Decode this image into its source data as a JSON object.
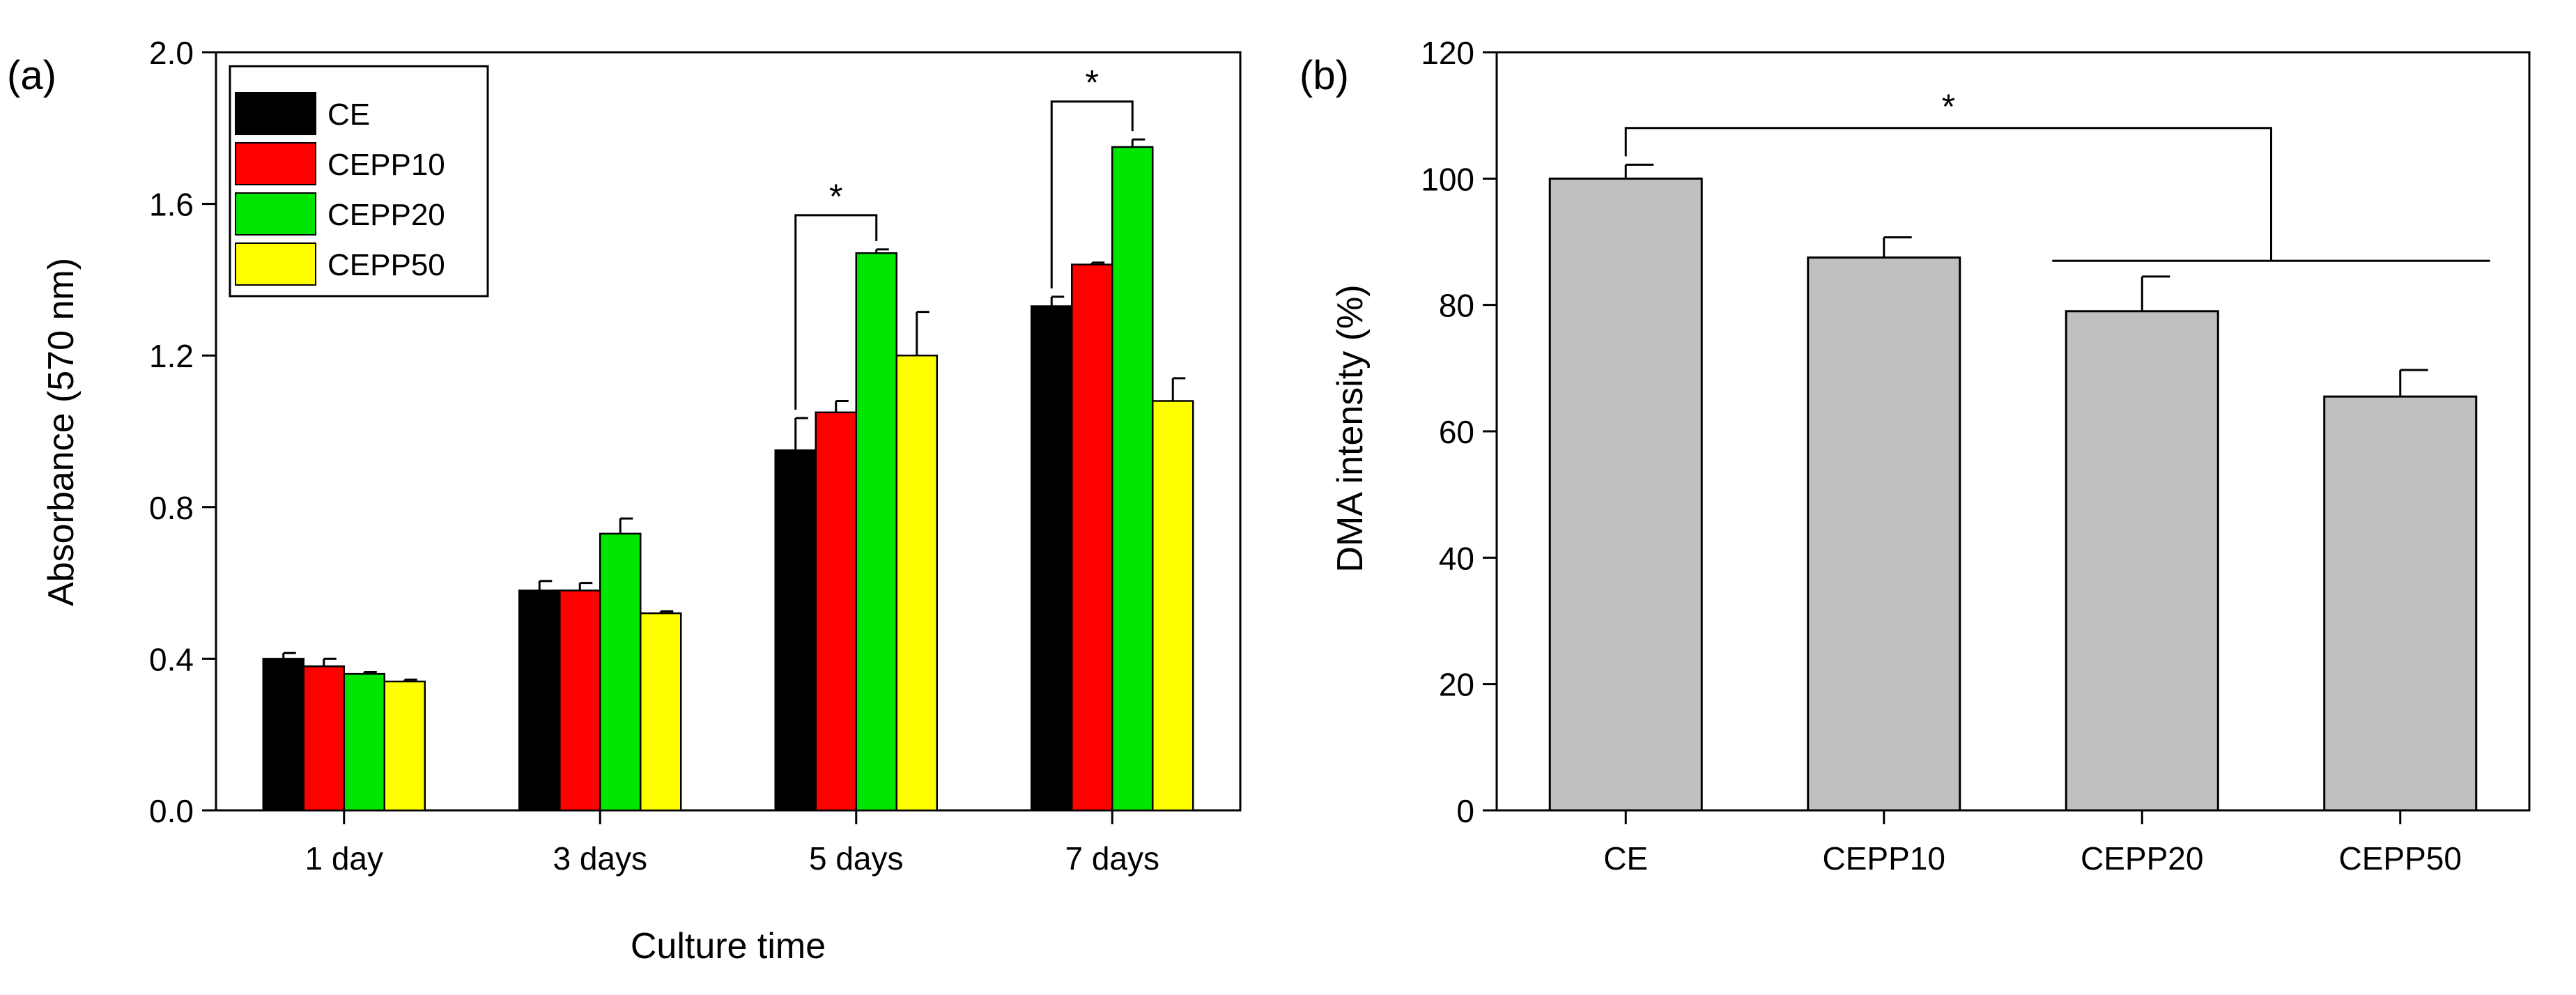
{
  "chart_data": [
    {
      "type": "bar",
      "panel_label": "(a)",
      "title": "",
      "xlabel": "Culture time",
      "ylabel": "Absorbance (570 nm)",
      "ylim": [
        0.0,
        2.0
      ],
      "yticks": [
        "0.0",
        "0.4",
        "0.8",
        "1.2",
        "1.6",
        "2.0"
      ],
      "categories": [
        "1 day",
        "3 days",
        "5 days",
        "7 days"
      ],
      "series": [
        {
          "name": "CE",
          "color": "#000000",
          "values": [
            0.4,
            0.58,
            0.95,
            1.33
          ],
          "errors": [
            0.015,
            0.025,
            0.085,
            0.025
          ]
        },
        {
          "name": "CEPP10",
          "color": "#ff0000",
          "values": [
            0.38,
            0.58,
            1.05,
            1.44
          ],
          "errors": [
            0.02,
            0.02,
            0.03,
            0.005
          ]
        },
        {
          "name": "CEPP20",
          "color": "#00e600",
          "values": [
            0.36,
            0.73,
            1.47,
            1.75
          ],
          "errors": [
            0.005,
            0.04,
            0.01,
            0.02
          ]
        },
        {
          "name": "CEPP50",
          "color": "#ffff00",
          "values": [
            0.34,
            0.52,
            1.2,
            1.08
          ],
          "errors": [
            0.005,
            0.005,
            0.115,
            0.06
          ]
        }
      ],
      "legend": {
        "position": "top-left",
        "entries": [
          "CE",
          "CEPP10",
          "CEPP20",
          "CEPP50"
        ]
      },
      "significance": [
        {
          "category": "5 days",
          "from_series": "CE",
          "to_series": "CEPP20",
          "bracket_level": 1.57,
          "label": "*"
        },
        {
          "category": "7 days",
          "from_series": "CE",
          "to_series": "CEPP20",
          "bracket_level": 1.87,
          "label": "*"
        }
      ]
    },
    {
      "type": "bar",
      "panel_label": "(b)",
      "title": "",
      "xlabel": "",
      "ylabel": "DMA intensity (%)",
      "ylim": [
        0,
        120
      ],
      "yticks": [
        "0",
        "20",
        "40",
        "60",
        "80",
        "100",
        "120"
      ],
      "categories": [
        "CE",
        "CEPP10",
        "CEPP20",
        "CEPP50"
      ],
      "values": [
        100,
        87.5,
        79,
        65.5
      ],
      "errors": [
        2.2,
        3.2,
        5.5,
        4.2
      ],
      "bar_color": "#c0c0c0",
      "significance": [
        {
          "from": "CE",
          "to": "CEPP20, CEPP50",
          "upper_level": 108,
          "lower_level": 87,
          "label": "*"
        }
      ]
    }
  ]
}
